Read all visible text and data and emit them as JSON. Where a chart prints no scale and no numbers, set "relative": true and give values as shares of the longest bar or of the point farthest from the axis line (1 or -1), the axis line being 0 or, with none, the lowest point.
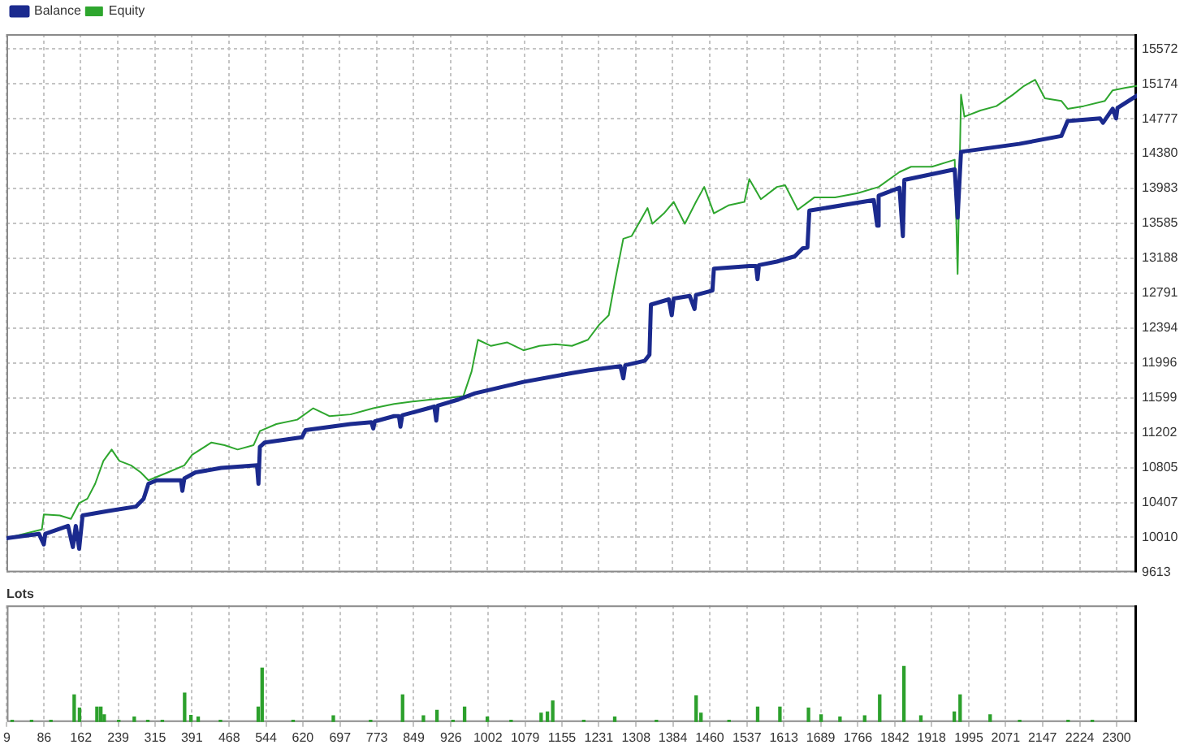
{
  "chart_data": [
    {
      "type": "line",
      "legend": "top left",
      "grid": true,
      "tick_labels": "y",
      "xlim": [
        9,
        2342
      ],
      "xticks": [
        9,
        86,
        162,
        239,
        315,
        391,
        468,
        544,
        620,
        697,
        773,
        849,
        926,
        1002,
        1079,
        1155,
        1231,
        1308,
        1384,
        1460,
        1537,
        1613,
        1689,
        1766,
        1842,
        1918,
        1995,
        2071,
        2147,
        2224,
        2300
      ],
      "ylim": [
        9613,
        15740
      ],
      "yticks": [
        9613,
        10010,
        10407,
        10805,
        11202,
        11599,
        11996,
        12394,
        12791,
        13188,
        13585,
        13983,
        14380,
        14777,
        15174,
        15572
      ],
      "series": [
        {
          "name": "Balance",
          "color": "#1b2a8e",
          "x": [
            9,
            76,
            86,
            89,
            136,
            146,
            152,
            159,
            166,
            219,
            276,
            292,
            302,
            319,
            369,
            372,
            376,
            399,
            452,
            526,
            529,
            532,
            542,
            619,
            626,
            719,
            762,
            766,
            769,
            809,
            819,
            822,
            826,
            886,
            892,
            896,
            899,
            942,
            976,
            1076,
            1176,
            1209,
            1276,
            1282,
            1286,
            1326,
            1336,
            1339,
            1376,
            1382,
            1386,
            1419,
            1429,
            1432,
            1466,
            1469,
            1542,
            1556,
            1559,
            1562,
            1599,
            1636,
            1652,
            1662,
            1666,
            1799,
            1806,
            1809,
            1852,
            1859,
            1862,
            1966,
            1972,
            1979,
            2099,
            2186,
            2199,
            2266,
            2272,
            2292,
            2299,
            2302,
            2342
          ],
          "values": [
            10000,
            10050,
            9930,
            10050,
            10140,
            9900,
            10140,
            9880,
            10260,
            10310,
            10360,
            10450,
            10620,
            10660,
            10660,
            10540,
            10680,
            10750,
            10800,
            10830,
            10620,
            11040,
            11090,
            11150,
            11230,
            11300,
            11320,
            11250,
            11330,
            11390,
            11390,
            11270,
            11400,
            11490,
            11500,
            11340,
            11510,
            11580,
            11650,
            11780,
            11880,
            11910,
            11960,
            11820,
            11970,
            12020,
            12090,
            12660,
            12720,
            12540,
            12730,
            12760,
            12610,
            12770,
            12820,
            13070,
            13100,
            13100,
            12950,
            13110,
            13150,
            13210,
            13300,
            13310,
            13730,
            13850,
            13560,
            13900,
            13990,
            13440,
            14080,
            14200,
            13650,
            14400,
            14490,
            14580,
            14750,
            14780,
            14730,
            14890,
            14780,
            14900,
            15040
          ]
        },
        {
          "name": "Equity",
          "color": "#2ea62e",
          "x": [
            9,
            82,
            86,
            119,
            142,
            159,
            176,
            192,
            209,
            226,
            242,
            266,
            286,
            302,
            342,
            376,
            392,
            432,
            459,
            486,
            519,
            532,
            566,
            609,
            642,
            676,
            719,
            766,
            809,
            852,
            886,
            926,
            952,
            969,
            982,
            1009,
            1042,
            1076,
            1109,
            1142,
            1176,
            1209,
            1232,
            1252,
            1266,
            1282,
            1299,
            1332,
            1342,
            1366,
            1386,
            1409,
            1432,
            1449,
            1469,
            1499,
            1532,
            1542,
            1566,
            1599,
            1616,
            1642,
            1676,
            1719,
            1766,
            1809,
            1852,
            1876,
            1919,
            1966,
            1972,
            1979,
            1986,
            2019,
            2052,
            2086,
            2109,
            2132,
            2152,
            2186,
            2199,
            2232,
            2276,
            2292,
            2319,
            2342
          ],
          "values": [
            10000,
            10100,
            10270,
            10260,
            10220,
            10400,
            10450,
            10620,
            10880,
            11010,
            10880,
            10830,
            10750,
            10660,
            10750,
            10830,
            10950,
            11090,
            11060,
            11010,
            11060,
            11220,
            11300,
            11350,
            11480,
            11390,
            11410,
            11480,
            11530,
            11560,
            11580,
            11600,
            11620,
            11900,
            12260,
            12190,
            12230,
            12140,
            12190,
            12210,
            12190,
            12260,
            12430,
            12540,
            12960,
            13410,
            13440,
            13760,
            13580,
            13700,
            13830,
            13580,
            13830,
            14000,
            13700,
            13790,
            13830,
            14090,
            13860,
            14000,
            14020,
            13740,
            13880,
            13880,
            13930,
            14000,
            14170,
            14230,
            14230,
            14310,
            13010,
            15050,
            14800,
            14870,
            14920,
            15050,
            15150,
            15220,
            15010,
            14980,
            14890,
            14920,
            14980,
            15100,
            15130,
            15150
          ]
        }
      ]
    },
    {
      "type": "bar",
      "title": "Lots",
      "relative": true,
      "grid": "x",
      "tick_labels": "x",
      "xlim": [
        9,
        2342
      ],
      "xticks": [
        9,
        86,
        162,
        239,
        315,
        391,
        468,
        544,
        620,
        697,
        773,
        849,
        926,
        1002,
        1079,
        1155,
        1231,
        1308,
        1384,
        1460,
        1537,
        1613,
        1689,
        1766,
        1842,
        1918,
        1995,
        2071,
        2147,
        2224,
        2300
      ],
      "color": "#2ca02c",
      "x": [
        20,
        60,
        100,
        148,
        159,
        195,
        203,
        210,
        240,
        272,
        300,
        330,
        376,
        389,
        404,
        450,
        528,
        536,
        600,
        683,
        760,
        826,
        869,
        897,
        930,
        954,
        1001,
        1050,
        1112,
        1125,
        1136,
        1200,
        1264,
        1350,
        1432,
        1442,
        1500,
        1559,
        1605,
        1664,
        1690,
        1729,
        1780,
        1811,
        1861,
        1896,
        1965,
        1977,
        2039,
        2100,
        2200,
        2250
      ],
      "values": [
        0.03,
        0.03,
        0.03,
        0.49,
        0.25,
        0.27,
        0.27,
        0.13,
        0.03,
        0.09,
        0.03,
        0.03,
        0.52,
        0.12,
        0.09,
        0.03,
        0.27,
        0.97,
        0.03,
        0.11,
        0.03,
        0.49,
        0.11,
        0.21,
        0.03,
        0.27,
        0.09,
        0.03,
        0.16,
        0.18,
        0.38,
        0.03,
        0.09,
        0.03,
        0.47,
        0.16,
        0.03,
        0.27,
        0.27,
        0.25,
        0.13,
        0.09,
        0.11,
        0.49,
        1,
        0.11,
        0.18,
        0.49,
        0.13,
        0.03,
        0.03,
        0.03
      ]
    }
  ]
}
